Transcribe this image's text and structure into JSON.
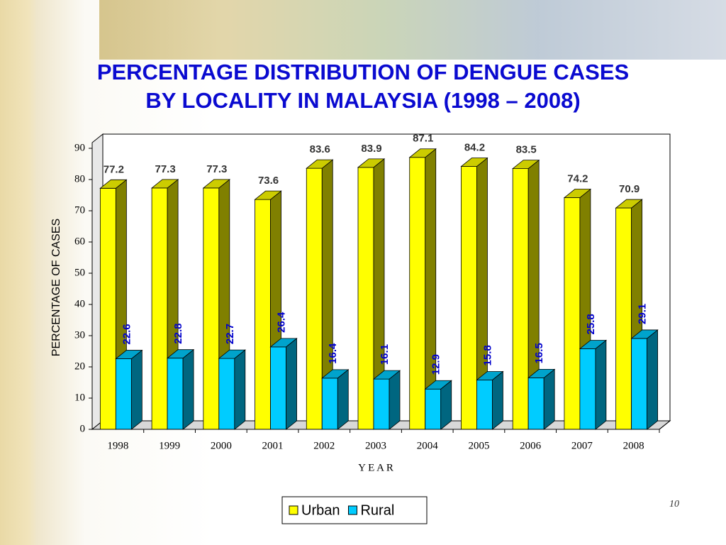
{
  "chart_data": {
    "type": "bar3d",
    "title": [
      "PERCENTAGE DISTRIBUTION OF DENGUE CASES",
      "BY LOCALITY IN MALAYSIA (1998 – 2008)"
    ],
    "y_label": "PERCENTAGE OF CASES",
    "x_label": "Y E A R",
    "categories": [
      "1998",
      "1999",
      "2000",
      "2001",
      "2002",
      "2003",
      "2004",
      "2005",
      "2006",
      "2007",
      "2008"
    ],
    "series": [
      {
        "name": "Urban",
        "color": "#ffff00",
        "values": [
          77.2,
          77.3,
          77.3,
          73.6,
          83.6,
          83.9,
          87.1,
          84.2,
          83.5,
          74.2,
          70.9
        ]
      },
      {
        "name": "Rural",
        "color": "#00ccff",
        "values": [
          22.6,
          22.8,
          22.7,
          26.4,
          16.4,
          16.1,
          12.9,
          15.8,
          16.5,
          25.8,
          29.1
        ]
      }
    ],
    "ylim": [
      0,
      90
    ],
    "yticks": [
      0,
      10,
      20,
      30,
      40,
      50,
      60,
      70,
      80,
      90
    ]
  },
  "page_number": "10"
}
